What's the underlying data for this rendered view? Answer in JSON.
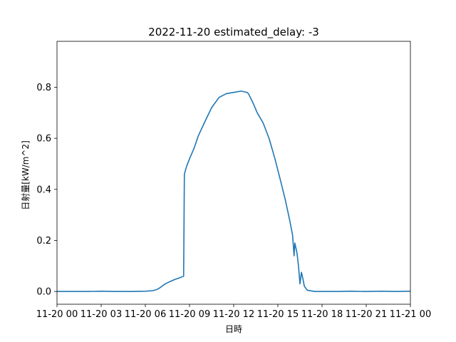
{
  "chart_data": {
    "type": "line",
    "title": "2022-11-20 estimated_delay: -3",
    "xlabel": "日時",
    "ylabel": "日射量[kW/m^2]",
    "x_unit": "hours since 2022-11-20 00:00",
    "xlim": [
      0,
      24
    ],
    "ylim": [
      -0.05,
      0.98
    ],
    "x_ticks": [
      {
        "value": 0,
        "label": "11-20 00"
      },
      {
        "value": 3,
        "label": "11-20 03"
      },
      {
        "value": 6,
        "label": "11-20 06"
      },
      {
        "value": 9,
        "label": "11-20 09"
      },
      {
        "value": 12,
        "label": "11-20 12"
      },
      {
        "value": 15,
        "label": "11-20 15"
      },
      {
        "value": 18,
        "label": "11-20 18"
      },
      {
        "value": 21,
        "label": "11-20 21"
      },
      {
        "value": 24,
        "label": "11-21 00"
      }
    ],
    "y_ticks": [
      {
        "value": 0.0,
        "label": "0.0"
      },
      {
        "value": 0.2,
        "label": "0.2"
      },
      {
        "value": 0.4,
        "label": "0.4"
      },
      {
        "value": 0.6,
        "label": "0.6"
      },
      {
        "value": 0.8,
        "label": "0.8"
      }
    ],
    "grid": false,
    "series": [
      {
        "name": "",
        "color": "#1f77b4",
        "points": [
          [
            0.0,
            0.0
          ],
          [
            1.0,
            0.0
          ],
          [
            2.0,
            0.0
          ],
          [
            3.0,
            0.001
          ],
          [
            4.0,
            0.0
          ],
          [
            5.0,
            0.0
          ],
          [
            6.0,
            0.001
          ],
          [
            6.5,
            0.003
          ],
          [
            6.8,
            0.008
          ],
          [
            7.0,
            0.015
          ],
          [
            7.3,
            0.028
          ],
          [
            7.6,
            0.037
          ],
          [
            8.0,
            0.047
          ],
          [
            8.3,
            0.053
          ],
          [
            8.6,
            0.06
          ],
          [
            8.65,
            0.46
          ],
          [
            8.8,
            0.49
          ],
          [
            9.0,
            0.52
          ],
          [
            9.3,
            0.56
          ],
          [
            9.6,
            0.61
          ],
          [
            10.0,
            0.66
          ],
          [
            10.5,
            0.72
          ],
          [
            11.0,
            0.76
          ],
          [
            11.5,
            0.775
          ],
          [
            12.0,
            0.78
          ],
          [
            12.5,
            0.785
          ],
          [
            12.9,
            0.78
          ],
          [
            13.0,
            0.775
          ],
          [
            13.3,
            0.74
          ],
          [
            13.6,
            0.7
          ],
          [
            14.0,
            0.66
          ],
          [
            14.4,
            0.6
          ],
          [
            14.8,
            0.52
          ],
          [
            15.2,
            0.43
          ],
          [
            15.5,
            0.36
          ],
          [
            15.8,
            0.28
          ],
          [
            16.0,
            0.22
          ],
          [
            16.1,
            0.14
          ],
          [
            16.15,
            0.19
          ],
          [
            16.3,
            0.15
          ],
          [
            16.4,
            0.1
          ],
          [
            16.5,
            0.03
          ],
          [
            16.6,
            0.075
          ],
          [
            16.7,
            0.05
          ],
          [
            16.8,
            0.02
          ],
          [
            17.0,
            0.005
          ],
          [
            17.5,
            0.0
          ],
          [
            18.0,
            0.0
          ],
          [
            19.0,
            0.0
          ],
          [
            20.0,
            0.001
          ],
          [
            21.0,
            0.0
          ],
          [
            22.0,
            0.001
          ],
          [
            23.0,
            0.0
          ],
          [
            24.0,
            0.001
          ]
        ]
      }
    ]
  }
}
